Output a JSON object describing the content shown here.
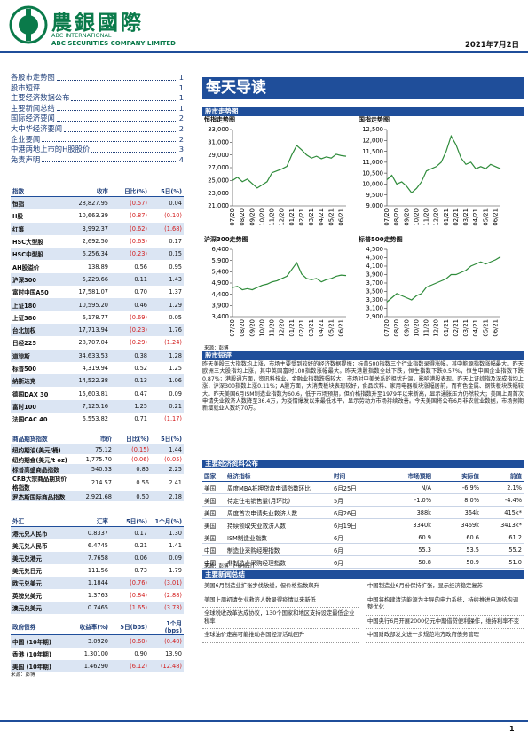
{
  "header": {
    "logo_cn": "農銀國際",
    "logo_en1": "ABC INTERNATIONAL",
    "logo_en2": "ABC SECURITIES COMPANY LIMITED",
    "date": "2021年7月2日"
  },
  "toc": [
    {
      "title": "各股市走势图",
      "page": "1"
    },
    {
      "title": "股市短评",
      "page": "1"
    },
    {
      "title": "主要经济数据公布",
      "page": "1"
    },
    {
      "title": "主要新闻总结",
      "page": "1"
    },
    {
      "title": "国际经济要闻",
      "page": "2"
    },
    {
      "title": "大中华经济要闻",
      "page": "2"
    },
    {
      "title": "企业要闻",
      "page": "2"
    },
    {
      "title": "中港两地上市的H股股价",
      "page": "3"
    },
    {
      "title": "免责声明",
      "page": "4"
    }
  ],
  "page_title": "每天导读",
  "sections": {
    "charts": "股市走势图",
    "commentary": "股市短评",
    "econ": "主要经济资料公布",
    "news": "主要新闻总结"
  },
  "chart_data": [
    {
      "type": "line",
      "title": "恒指走势图",
      "color": "#2e8b3a",
      "categories": [
        "07/20",
        null,
        "08/20",
        null,
        "09/20",
        null,
        "10/20",
        null,
        "11/20",
        null,
        "12/20",
        null,
        "01/21",
        null,
        "02/21",
        null,
        "03/21",
        null,
        "04/21",
        null,
        "05/21",
        null,
        "06/21",
        null
      ],
      "values": [
        25000,
        25500,
        24800,
        25200,
        24500,
        23800,
        24300,
        24800,
        26200,
        26500,
        26800,
        27200,
        29000,
        30500,
        29800,
        29000,
        28500,
        28800,
        28400,
        28700,
        28500,
        29100,
        28900,
        28800
      ],
      "ylim": [
        21000,
        33000
      ],
      "yticks": [
        {
          "value": 21000,
          "label": "21,000"
        },
        {
          "value": 23000,
          "label": "23,000"
        },
        {
          "value": 25000,
          "label": "25,000"
        },
        {
          "value": 27000,
          "label": "27,000"
        },
        {
          "value": 29000,
          "label": "29,000"
        },
        {
          "value": 31000,
          "label": "31,000"
        },
        {
          "value": 33000,
          "label": "33,000"
        }
      ]
    },
    {
      "type": "line",
      "title": "国指走势图",
      "color": "#2e8b3a",
      "categories": [
        "07/20",
        null,
        "08/20",
        null,
        "09/20",
        null,
        "10/20",
        null,
        "11/20",
        null,
        "12/20",
        null,
        "01/21",
        null,
        "02/21",
        null,
        "03/21",
        null,
        "04/21",
        null,
        "05/21",
        null,
        "06/21",
        null
      ],
      "values": [
        10200,
        10400,
        10000,
        10100,
        9900,
        9600,
        9800,
        10100,
        10600,
        10700,
        10800,
        11000,
        11500,
        12200,
        11800,
        11200,
        10900,
        11000,
        10700,
        10800,
        10700,
        10900,
        10800,
        10700
      ],
      "ylim": [
        9000,
        12500
      ],
      "yticks": [
        {
          "value": 9000,
          "label": "9,000"
        },
        {
          "value": 9500,
          "label": "9,500"
        },
        {
          "value": 10000,
          "label": "10,000"
        },
        {
          "value": 10500,
          "label": "10,500"
        },
        {
          "value": 11000,
          "label": "11,000"
        },
        {
          "value": 11500,
          "label": "11,500"
        },
        {
          "value": 12000,
          "label": "12,000"
        },
        {
          "value": 12500,
          "label": "12,500"
        }
      ]
    },
    {
      "type": "line",
      "title": "沪深300走势图",
      "color": "#2e8b3a",
      "categories": [
        "07/20",
        null,
        "08/20",
        null,
        "09/20",
        null,
        "10/20",
        null,
        "11/20",
        null,
        "12/20",
        null,
        "01/21",
        null,
        "02/21",
        null,
        "03/21",
        null,
        "04/21",
        null,
        "05/21",
        null,
        "06/21",
        null
      ],
      "values": [
        4700,
        4750,
        4600,
        4650,
        4600,
        4700,
        4800,
        4850,
        4950,
        5000,
        5100,
        5200,
        5500,
        5800,
        5300,
        5100,
        5050,
        5100,
        4950,
        5050,
        5100,
        5200,
        5250,
        5230
      ],
      "ylim": [
        3400,
        6400
      ],
      "yticks": [
        {
          "value": 3400,
          "label": "3,400"
        },
        {
          "value": 3900,
          "label": "3,900"
        },
        {
          "value": 4400,
          "label": "4,400"
        },
        {
          "value": 4900,
          "label": "4,900"
        },
        {
          "value": 5400,
          "label": "5,400"
        },
        {
          "value": 5900,
          "label": "5,900"
        },
        {
          "value": 6400,
          "label": "6,400"
        }
      ]
    },
    {
      "type": "line",
      "title": "标普500走势图",
      "color": "#2e8b3a",
      "categories": [
        "07/20",
        null,
        "08/20",
        null,
        "09/20",
        null,
        "10/20",
        null,
        "11/20",
        null,
        "12/20",
        null,
        "01/21",
        null,
        "02/21",
        null,
        "03/21",
        null,
        "04/21",
        null,
        "05/21",
        null,
        "06/21",
        null
      ],
      "values": [
        3250,
        3350,
        3450,
        3400,
        3350,
        3300,
        3400,
        3450,
        3600,
        3650,
        3700,
        3750,
        3800,
        3900,
        3900,
        3950,
        4000,
        4100,
        4150,
        4200,
        4150,
        4200,
        4250,
        4320
      ],
      "ylim": [
        2900,
        4500
      ],
      "yticks": [
        {
          "value": 2900,
          "label": "2,900"
        },
        {
          "value": 3100,
          "label": "3,100"
        },
        {
          "value": 3300,
          "label": "3,300"
        },
        {
          "value": 3500,
          "label": "3,500"
        },
        {
          "value": 3700,
          "label": "3,700"
        },
        {
          "value": 3900,
          "label": "3,900"
        },
        {
          "value": 4100,
          "label": "4,100"
        },
        {
          "value": 4300,
          "label": "4,300"
        },
        {
          "value": 4500,
          "label": "4,500"
        }
      ]
    }
  ],
  "charts_source": "来源：彭博",
  "commentary": "昨天美股三大指数均上涨，市场主要受到较好的经济数据提振；标普500指数三个行业指数录得涨幅，其中能源指数涨幅最大。昨天欧洲三大股指均上涨，其中英国富时100指数涨幅最大。昨天港股指数全线下跌，恒生指数下跌0.57%，恒生中国企业指数下跌0.87%；港股通方面，资讯科技业、金融业指数跌幅较大，市场对中美关系的担忧升温，影响港股表现。昨天上证综指及深成指均上涨，沪深300指数上涨0.11%；A股方面，大消费板块表现较好，食品饮料、家用电器板块涨幅居前，而有色金属、钢铁板块跌幅较大。昨天美国6月ISM制造业指数为60.6，低于市场预期，但价格指数升至1979年以来新高，显示通胀压力仍然较大；美国上周首次申请失业救济人数降至36.4万，为疫情爆发以来最低水平，显示劳动力市场持续改善。今天美国将公布6月非农就业数据，市场预期新增就业人数约70万。",
  "indices": {
    "headers": [
      "指数",
      "收市",
      "日比(%)",
      "5日(%)"
    ],
    "rows": [
      [
        "恒指",
        "28,827.95",
        "(0.57)",
        "0.04"
      ],
      [
        "H股",
        "10,663.39",
        "(0.87)",
        "(0.10)"
      ],
      [
        "红筹",
        "3,992.37",
        "(0.62)",
        "(1.68)"
      ],
      [
        "HSC大型股",
        "2,692.50",
        "(0.63)",
        "0.17"
      ],
      [
        "HSC中型股",
        "6,256.34",
        "(0.23)",
        "0.15"
      ],
      [
        "AH股溢价",
        "138.89",
        "0.56",
        "0.95"
      ],
      [
        "沪深300",
        "5,229.66",
        "0.11",
        "1.43"
      ],
      [
        "富时中国A50",
        "17,581.07",
        "0.70",
        "1.37"
      ],
      [
        "上证180",
        "10,595.20",
        "0.46",
        "1.29"
      ],
      [
        "上证380",
        "6,178.77",
        "(0.69)",
        "0.05"
      ],
      [
        "台北加权",
        "17,713.94",
        "(0.23)",
        "1.76"
      ],
      [
        "日经225",
        "28,707.04",
        "(0.29)",
        "(1.24)"
      ],
      [
        "道琼斯",
        "34,633.53",
        "0.38",
        "1.28"
      ],
      [
        "标普500",
        "4,319.94",
        "0.52",
        "1.25"
      ],
      [
        "纳斯达克",
        "14,522.38",
        "0.13",
        "1.06"
      ],
      [
        "德国DAX 30",
        "15,603.81",
        "0.47",
        "0.09"
      ],
      [
        "富时100",
        "7,125.16",
        "1.25",
        "0.21"
      ],
      [
        "法国CAC 40",
        "6,553.82",
        "0.71",
        "(1.17)"
      ]
    ]
  },
  "commodities": {
    "headers": [
      "商品期货指数",
      "市价",
      "日比(%)",
      "5日(%)"
    ],
    "rows": [
      [
        "纽约期油(美元/桶)",
        "75.12",
        "(0.15)",
        "1.44"
      ],
      [
        "纽约期金(美元/t oz)",
        "1,775.70",
        "(0.06)",
        "(0.05)"
      ],
      [
        "标普高盛商品指数",
        "540.53",
        "0.85",
        "2.25"
      ],
      [
        "CRB大宗商品期货价格指数",
        "214.57",
        "0.56",
        "2.41"
      ],
      [
        "罗杰斯国际商品指数",
        "2,921.68",
        "0.50",
        "2.18"
      ]
    ]
  },
  "fx": {
    "headers": [
      "外汇",
      "汇率",
      "5日(%)",
      "1个月(%)"
    ],
    "rows": [
      [
        "港元兑人民币",
        "0.8337",
        "0.17",
        "1.30"
      ],
      [
        "美元兑人民币",
        "6.4745",
        "0.21",
        "1.41"
      ],
      [
        "美元兑港元",
        "7.7658",
        "0.06",
        "0.09"
      ],
      [
        "美元兑日元",
        "111.56",
        "0.73",
        "1.79"
      ],
      [
        "欧元兑美元",
        "1.1844",
        "(0.76)",
        "(3.01)"
      ],
      [
        "英镑兑美元",
        "1.3763",
        "(0.84)",
        "(2.88)"
      ],
      [
        "澳元兑美元",
        "0.7465",
        "(1.65)",
        "(3.73)"
      ]
    ]
  },
  "bonds": {
    "headers": [
      "政府债券",
      "收益率(%)",
      "5日(bps)",
      "1个月(bps)"
    ],
    "rows": [
      [
        "中国 (10年期)",
        "3.0920",
        "(0.60)",
        "(0.40)"
      ],
      [
        "香港 (10年期)",
        "1.30100",
        "0.90",
        "13.90"
      ],
      [
        "美国 (10年期)",
        "1.46290",
        "(6.12)",
        "(12.48)"
      ]
    ]
  },
  "left_source": "来源：彭博",
  "econ": {
    "headers": [
      "国家",
      "经济指标",
      "时间",
      "市场预期",
      "实际值",
      "前值"
    ],
    "rows": [
      [
        "美国",
        "周度MBA抵押贷款申请指数环比",
        "6月25日",
        "N/A",
        "-6.9%",
        "2.1%"
      ],
      [
        "美国",
        "待定住宅销售量(月环比)",
        "5月",
        "-1.0%",
        "8.0%",
        "-4.4%"
      ],
      [
        "美国",
        "周度首次申请失业救济人数",
        "6月26日",
        "388k",
        "364k",
        "415k*"
      ],
      [
        "美国",
        "持续领取失业救济人数",
        "6月19日",
        "3340k",
        "3469k",
        "3413k*"
      ],
      [
        "美国",
        "ISM制造业指数",
        "6月",
        "60.9",
        "60.6",
        "61.2"
      ],
      [
        "中国",
        "制造业采购经理指数",
        "6月",
        "55.3",
        "53.5",
        "55.2"
      ],
      [
        "中国",
        "非制造业采购经理指数",
        "6月",
        "50.8",
        "50.9",
        "51.0"
      ]
    ]
  },
  "econ_source": "来源：彭博　(*经修订)",
  "news": {
    "left": [
      "美国6月制造业扩张步伐放缓，但价格指数飙升",
      "美国上周初请失业救济人数录得疫情以来新低",
      "全球税收改革达成协议，130个国家和地区支持设定最低企业税率",
      "全球油价走高可能推动各国经济活动回升"
    ],
    "right": [
      "中国制造业6月份保持扩张，显示经济稳定复苏",
      "中国将构建清洁能源为主导的电力系统，持续推进电源结构调整优化",
      "中国央行6月开展2000亿元中期借贷便利操作，维持利率不变",
      "中国财政部发文进一步规范地方政府债务管理"
    ]
  },
  "footer": {
    "page": "1"
  }
}
